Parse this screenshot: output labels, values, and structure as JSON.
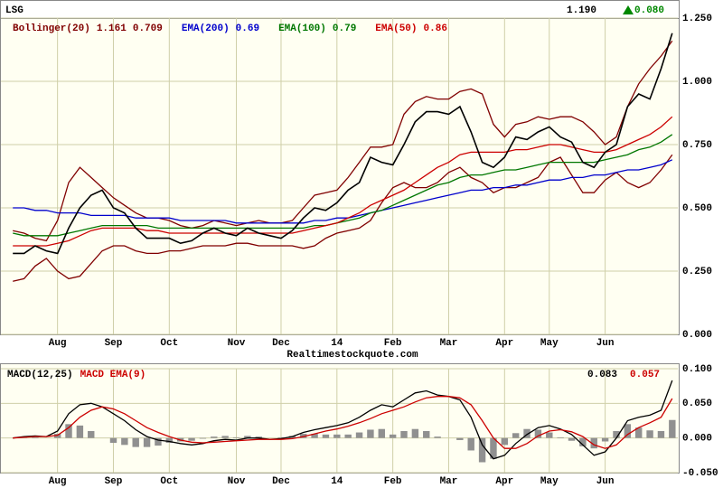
{
  "chart_data": [
    {
      "type": "line",
      "title": "LSG",
      "last_price": {
        "value": 1.19,
        "label": "1.190"
      },
      "change": {
        "value": 0.08,
        "label": "0.080"
      },
      "source": "Realtimestockquote.com",
      "legend_values": "inline",
      "grid": true,
      "ylim": [
        0,
        1.25
      ],
      "yticks": [
        {
          "value": 0,
          "label": "0.000"
        },
        {
          "value": 0.25,
          "label": "0.250"
        },
        {
          "value": 0.5,
          "label": "0.500"
        },
        {
          "value": 0.75,
          "label": "0.750"
        },
        {
          "value": 1,
          "label": "1.000"
        },
        {
          "value": 1.25,
          "label": "1.250"
        }
      ],
      "categories": [
        null,
        null,
        null,
        null,
        "Aug",
        null,
        null,
        null,
        null,
        "Sep",
        null,
        null,
        null,
        null,
        "Oct",
        null,
        null,
        null,
        null,
        null,
        "Nov",
        null,
        null,
        null,
        "Dec",
        null,
        null,
        null,
        null,
        "14",
        null,
        null,
        null,
        null,
        "Feb",
        null,
        null,
        null,
        null,
        "Mar",
        null,
        null,
        null,
        null,
        "Apr",
        null,
        null,
        null,
        "May",
        null,
        null,
        null,
        null,
        "Jun",
        null,
        null,
        null,
        null,
        null,
        null
      ],
      "series": [
        {
          "name": "Bollinger(20)",
          "color": "#800000",
          "legend_value": 1.161,
          "values": [
            0.41,
            0.4,
            0.38,
            0.37,
            0.45,
            0.6,
            0.66,
            0.62,
            0.58,
            0.54,
            0.51,
            0.48,
            0.46,
            0.46,
            0.45,
            0.43,
            0.42,
            0.43,
            0.45,
            0.44,
            0.43,
            0.44,
            0.45,
            0.44,
            0.44,
            0.45,
            0.5,
            0.55,
            0.56,
            0.57,
            0.62,
            0.68,
            0.74,
            0.74,
            0.75,
            0.87,
            0.92,
            0.94,
            0.93,
            0.93,
            0.96,
            0.97,
            0.95,
            0.83,
            0.78,
            0.83,
            0.84,
            0.86,
            0.85,
            0.86,
            0.86,
            0.84,
            0.8,
            0.75,
            0.78,
            0.9,
            0.99,
            1.05,
            1.1,
            1.16
          ]
        },
        {
          "color": "#800000",
          "legend_value": 0.709,
          "values": [
            0.21,
            0.22,
            0.27,
            0.3,
            0.25,
            0.22,
            0.23,
            0.28,
            0.33,
            0.35,
            0.35,
            0.33,
            0.32,
            0.32,
            0.33,
            0.33,
            0.34,
            0.35,
            0.35,
            0.35,
            0.36,
            0.36,
            0.35,
            0.35,
            0.35,
            0.35,
            0.34,
            0.35,
            0.38,
            0.4,
            0.41,
            0.42,
            0.45,
            0.52,
            0.58,
            0.6,
            0.58,
            0.58,
            0.6,
            0.64,
            0.66,
            0.62,
            0.6,
            0.56,
            0.58,
            0.58,
            0.6,
            0.62,
            0.68,
            0.7,
            0.63,
            0.56,
            0.56,
            0.61,
            0.64,
            0.6,
            0.58,
            0.6,
            0.65,
            0.71
          ]
        },
        {
          "name": "EMA(200)",
          "color": "#0000cc",
          "legend_value": 0.69,
          "values": [
            0.5,
            0.5,
            0.49,
            0.49,
            0.48,
            0.48,
            0.48,
            0.47,
            0.47,
            0.47,
            0.47,
            0.46,
            0.46,
            0.46,
            0.46,
            0.45,
            0.45,
            0.45,
            0.45,
            0.45,
            0.44,
            0.44,
            0.44,
            0.44,
            0.44,
            0.44,
            0.44,
            0.45,
            0.45,
            0.46,
            0.46,
            0.47,
            0.48,
            0.49,
            0.5,
            0.51,
            0.52,
            0.53,
            0.54,
            0.55,
            0.56,
            0.57,
            0.57,
            0.58,
            0.58,
            0.59,
            0.59,
            0.6,
            0.61,
            0.61,
            0.62,
            0.62,
            0.63,
            0.63,
            0.64,
            0.65,
            0.65,
            0.66,
            0.67,
            0.69
          ]
        },
        {
          "name": "EMA(100)",
          "color": "#007700",
          "legend_value": 0.79,
          "values": [
            0.4,
            0.39,
            0.39,
            0.39,
            0.39,
            0.4,
            0.41,
            0.42,
            0.43,
            0.43,
            0.43,
            0.43,
            0.43,
            0.42,
            0.42,
            0.42,
            0.42,
            0.42,
            0.42,
            0.42,
            0.42,
            0.42,
            0.42,
            0.42,
            0.42,
            0.42,
            0.42,
            0.43,
            0.43,
            0.44,
            0.45,
            0.46,
            0.48,
            0.49,
            0.51,
            0.53,
            0.55,
            0.57,
            0.59,
            0.6,
            0.62,
            0.63,
            0.63,
            0.64,
            0.65,
            0.65,
            0.66,
            0.67,
            0.68,
            0.68,
            0.68,
            0.68,
            0.68,
            0.69,
            0.7,
            0.71,
            0.73,
            0.74,
            0.76,
            0.79
          ]
        },
        {
          "name": "EMA(50)",
          "color": "#cc0000",
          "legend_value": 0.86,
          "values": [
            0.35,
            0.35,
            0.35,
            0.35,
            0.36,
            0.37,
            0.39,
            0.41,
            0.42,
            0.42,
            0.42,
            0.42,
            0.41,
            0.41,
            0.4,
            0.4,
            0.4,
            0.4,
            0.4,
            0.4,
            0.4,
            0.4,
            0.4,
            0.4,
            0.4,
            0.4,
            0.41,
            0.42,
            0.43,
            0.44,
            0.46,
            0.48,
            0.51,
            0.53,
            0.55,
            0.57,
            0.6,
            0.63,
            0.66,
            0.68,
            0.71,
            0.72,
            0.72,
            0.72,
            0.72,
            0.73,
            0.73,
            0.74,
            0.75,
            0.75,
            0.74,
            0.73,
            0.72,
            0.72,
            0.73,
            0.75,
            0.77,
            0.79,
            0.82,
            0.86
          ]
        },
        {
          "color": "#000000",
          "values": [
            0.32,
            0.32,
            0.35,
            0.33,
            0.32,
            0.42,
            0.5,
            0.55,
            0.57,
            0.5,
            0.48,
            0.42,
            0.38,
            0.38,
            0.38,
            0.36,
            0.37,
            0.4,
            0.42,
            0.4,
            0.39,
            0.42,
            0.4,
            0.39,
            0.38,
            0.41,
            0.46,
            0.5,
            0.49,
            0.52,
            0.57,
            0.6,
            0.7,
            0.68,
            0.67,
            0.75,
            0.84,
            0.88,
            0.88,
            0.87,
            0.9,
            0.8,
            0.68,
            0.66,
            0.7,
            0.78,
            0.77,
            0.8,
            0.82,
            0.78,
            0.76,
            0.68,
            0.66,
            0.72,
            0.75,
            0.9,
            0.95,
            0.93,
            1.05,
            1.19
          ]
        }
      ]
    },
    {
      "type": "line",
      "legend_values": "right",
      "grid": true,
      "ylim": [
        -0.05,
        0.1
      ],
      "yticks": [
        {
          "value": -0.05,
          "label": "-0.050"
        },
        {
          "value": 0,
          "label": "0.000"
        },
        {
          "value": 0.05,
          "label": "0.050"
        },
        {
          "value": 0.1,
          "label": "0.100"
        }
      ],
      "categories": [
        null,
        null,
        null,
        null,
        "Aug",
        null,
        null,
        null,
        null,
        "Sep",
        null,
        null,
        null,
        null,
        "Oct",
        null,
        null,
        null,
        null,
        null,
        "Nov",
        null,
        null,
        null,
        "Dec",
        null,
        null,
        null,
        null,
        "14",
        null,
        null,
        null,
        null,
        "Feb",
        null,
        null,
        null,
        null,
        "Mar",
        null,
        null,
        null,
        null,
        "Apr",
        null,
        null,
        null,
        "May",
        null,
        null,
        null,
        null,
        "Jun",
        null,
        null,
        null,
        null,
        null,
        null
      ],
      "series": [
        {
          "type": "bar",
          "color": "#909090",
          "values": [
            0,
            0.001,
            0.001,
            0,
            0.006,
            0.02,
            0.018,
            0.01,
            0,
            -0.007,
            -0.01,
            -0.013,
            -0.013,
            -0.011,
            -0.007,
            -0.005,
            -0.004,
            -0.001,
            0.002,
            0.003,
            0.001,
            0.003,
            0.002,
            0,
            0.001,
            0.003,
            0.006,
            0.006,
            0.005,
            0.005,
            0.005,
            0.008,
            0.012,
            0.013,
            0.005,
            0.01,
            0.013,
            0.01,
            0.002,
            0,
            -0.003,
            -0.018,
            -0.035,
            -0.03,
            -0.01,
            0.007,
            0.013,
            0.012,
            0.008,
            0.001,
            -0.004,
            -0.012,
            -0.015,
            -0.005,
            0.01,
            0.02,
            0.015,
            0.011,
            0.01,
            0.026
          ]
        },
        {
          "name": "MACD(12,25)",
          "color": "#000000",
          "legend_value": 0.083,
          "values": [
            0,
            0.002,
            0.003,
            0.002,
            0.01,
            0.035,
            0.048,
            0.05,
            0.045,
            0.035,
            0.025,
            0.012,
            0.002,
            -0.003,
            -0.005,
            -0.008,
            -0.01,
            -0.008,
            -0.004,
            -0.002,
            -0.003,
            0,
            0,
            -0.002,
            -0.001,
            0.002,
            0.008,
            0.012,
            0.015,
            0.018,
            0.022,
            0.03,
            0.04,
            0.048,
            0.045,
            0.055,
            0.065,
            0.068,
            0.062,
            0.06,
            0.055,
            0.03,
            -0.01,
            -0.03,
            -0.025,
            -0.008,
            0.005,
            0.015,
            0.018,
            0.013,
            0.005,
            -0.01,
            -0.025,
            -0.02,
            0,
            0.025,
            0.03,
            0.033,
            0.04,
            0.083
          ]
        },
        {
          "name": "MACD EMA(9)",
          "color": "#cc0000",
          "legend_value": 0.057,
          "values": [
            0,
            0.001,
            0.002,
            0.002,
            0.004,
            0.015,
            0.03,
            0.04,
            0.045,
            0.042,
            0.035,
            0.025,
            0.015,
            0.008,
            0.002,
            -0.003,
            -0.006,
            -0.007,
            -0.006,
            -0.005,
            -0.004,
            -0.003,
            -0.002,
            -0.002,
            -0.002,
            -0.001,
            0.002,
            0.006,
            0.01,
            0.013,
            0.017,
            0.022,
            0.028,
            0.035,
            0.04,
            0.045,
            0.052,
            0.058,
            0.06,
            0.06,
            0.058,
            0.048,
            0.025,
            0,
            -0.015,
            -0.015,
            -0.008,
            0.003,
            0.01,
            0.012,
            0.009,
            0.002,
            -0.01,
            -0.015,
            -0.01,
            0.005,
            0.015,
            0.022,
            0.03,
            0.057
          ]
        }
      ]
    }
  ]
}
